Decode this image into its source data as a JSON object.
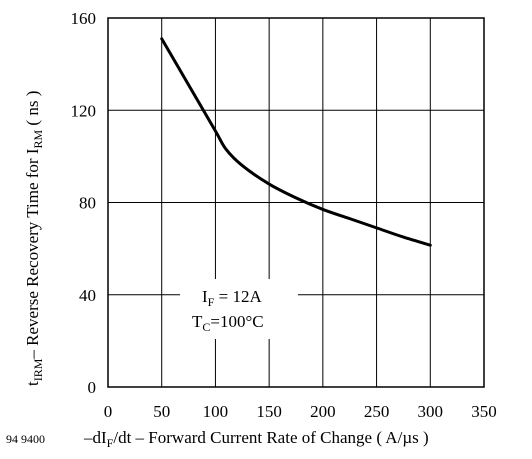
{
  "chart_data": {
    "type": "line",
    "figure_code": "94 9400",
    "x": [
      50,
      75,
      100,
      110,
      125,
      150,
      175,
      200,
      225,
      250,
      275,
      300
    ],
    "y": [
      151,
      131,
      111,
      103,
      96,
      88,
      82,
      77,
      73,
      69,
      65,
      61.5
    ],
    "xlim": [
      0,
      350
    ],
    "ylim": [
      0,
      160
    ],
    "xticks": [
      0,
      50,
      100,
      150,
      200,
      250,
      300,
      350
    ],
    "yticks": [
      0,
      40,
      80,
      120,
      160
    ],
    "grid": true,
    "xlabel": {
      "prefix": "–dI",
      "sub": "F",
      "rest": "/dt – Forward Current Rate of Change ( A/",
      "mu": "µ",
      "suffix": "s )"
    },
    "ylabel": {
      "part1": "t",
      "sub1": "IRM",
      "part2": "– Reverse Recovery Time for I",
      "sub2": "RM",
      "part3": " ( ns )"
    },
    "annotation": {
      "line1_main": "I",
      "line1_sub": "F",
      "line1_rest": " = 12A",
      "line2_main": "T",
      "line2_sub": "C",
      "line2_rest": "=100°C"
    }
  }
}
